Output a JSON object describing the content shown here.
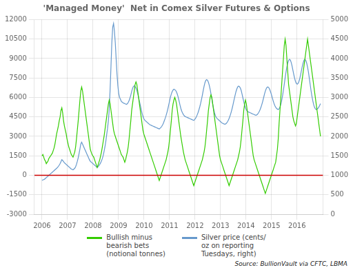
{
  "chart_data": {
    "type": "line",
    "title": "'Managed Money'  Net in Comex Silver Futures & Options",
    "source": "Source: BullionVault via CFTC, LBMA",
    "legend": "bottom",
    "grid": true,
    "xlim": [
      2005.7,
      2017.02
    ],
    "xticks": [
      2006,
      2007,
      2008,
      2009,
      2010,
      2011,
      2012,
      2013,
      2014,
      2015,
      2016
    ],
    "ylim": [
      -3000,
      12000
    ],
    "yticks": [
      -3000,
      -1500,
      0,
      1500,
      3000,
      4500,
      6000,
      7500,
      9000,
      10500,
      12000
    ],
    "y2lim": [
      0,
      5000
    ],
    "y2ticks": [
      0,
      500,
      1000,
      1500,
      2000,
      2500,
      3000,
      3500,
      4000,
      4500,
      5000
    ],
    "zero_line": {
      "value": 0,
      "color": "#CC0000"
    },
    "x": [
      2006,
      2006.034,
      2006.068,
      2006.101,
      2006.135,
      2006.169,
      2006.203,
      2006.237,
      2006.27,
      2006.304,
      2006.338,
      2006.372,
      2006.406,
      2006.44,
      2006.473,
      2006.507,
      2006.541,
      2006.575,
      2006.609,
      2006.642,
      2006.676,
      2006.71,
      2006.744,
      2006.778,
      2006.811,
      2006.845,
      2006.879,
      2006.913,
      2006.947,
      2006.98,
      2007.014,
      2007.048,
      2007.082,
      2007.116,
      2007.149,
      2007.183,
      2007.217,
      2007.251,
      2007.285,
      2007.319,
      2007.352,
      2007.386,
      2007.42,
      2007.454,
      2007.488,
      2007.521,
      2007.555,
      2007.589,
      2007.623,
      2007.657,
      2007.69,
      2007.724,
      2007.758,
      2007.792,
      2007.826,
      2007.859,
      2007.893,
      2007.927,
      2007.961,
      2007.995,
      2008.028,
      2008.062,
      2008.096,
      2008.13,
      2008.164,
      2008.198,
      2008.231,
      2008.265,
      2008.299,
      2008.333,
      2008.367,
      2008.4,
      2008.434,
      2008.468,
      2008.502,
      2008.536,
      2008.569,
      2008.603,
      2008.637,
      2008.671,
      2008.705,
      2008.738,
      2008.772,
      2008.806,
      2008.84,
      2008.874,
      2008.907,
      2008.941,
      2008.975,
      2009.009,
      2009.043,
      2009.077,
      2009.11,
      2009.144,
      2009.178,
      2009.212,
      2009.246,
      2009.279,
      2009.313,
      2009.347,
      2009.381,
      2009.415,
      2009.448,
      2009.482,
      2009.516,
      2009.55,
      2009.584,
      2009.617,
      2009.651,
      2009.685,
      2009.719,
      2009.753,
      2009.787,
      2009.82,
      2009.854,
      2009.888,
      2009.922,
      2009.956,
      2009.989,
      2010.023,
      2010.057,
      2010.091,
      2010.125,
      2010.158,
      2010.192,
      2010.226,
      2010.26,
      2010.294,
      2010.327,
      2010.361,
      2010.395,
      2010.429,
      2010.463,
      2010.496,
      2010.53,
      2010.564,
      2010.598,
      2010.632,
      2010.666,
      2010.699,
      2010.733,
      2010.767,
      2010.801,
      2010.835,
      2010.868,
      2010.902,
      2010.936,
      2010.97,
      2011.004,
      2011.037,
      2011.071,
      2011.105,
      2011.139,
      2011.173,
      2011.206,
      2011.24,
      2011.274,
      2011.308,
      2011.342,
      2011.375,
      2011.409,
      2011.443,
      2011.477,
      2011.511,
      2011.545,
      2011.578,
      2011.612,
      2011.646,
      2011.68,
      2011.714,
      2011.747,
      2011.781,
      2011.815,
      2011.849,
      2011.883,
      2011.916,
      2011.95,
      2011.984,
      2012.018,
      2012.052,
      2012.085,
      2012.119,
      2012.153,
      2012.187,
      2012.221,
      2012.254,
      2012.288,
      2012.322,
      2012.356,
      2012.39,
      2012.424,
      2012.457,
      2012.491,
      2012.525,
      2012.559,
      2012.593,
      2012.626,
      2012.66,
      2012.694,
      2012.728,
      2012.762,
      2012.795,
      2012.829,
      2012.863,
      2012.897,
      2012.931,
      2012.964,
      2012.998,
      2013.032,
      2013.066,
      2013.1,
      2013.133,
      2013.167,
      2013.201,
      2013.235,
      2013.269,
      2013.303,
      2013.336,
      2013.37,
      2013.404,
      2013.438,
      2013.472,
      2013.505,
      2013.539,
      2013.573,
      2013.607,
      2013.641,
      2013.674,
      2013.708,
      2013.742,
      2013.776,
      2013.81,
      2013.843,
      2013.877,
      2013.911,
      2013.945,
      2013.979,
      2014.013,
      2014.046,
      2014.08,
      2014.114,
      2014.148,
      2014.182,
      2014.215,
      2014.249,
      2014.283,
      2014.317,
      2014.351,
      2014.384,
      2014.418,
      2014.452,
      2014.486,
      2014.52,
      2014.553,
      2014.587,
      2014.621,
      2014.655,
      2014.689,
      2014.722,
      2014.756,
      2014.79,
      2014.824,
      2014.858,
      2014.892,
      2014.925,
      2014.959,
      2014.993,
      2015.027,
      2015.061,
      2015.094,
      2015.128,
      2015.162,
      2015.196,
      2015.23,
      2015.263,
      2015.297,
      2015.331,
      2015.365,
      2015.399,
      2015.432,
      2015.466,
      2015.5,
      2015.534,
      2015.568,
      2015.601,
      2015.635,
      2015.669,
      2015.703,
      2015.737,
      2015.771,
      2015.804,
      2015.838,
      2015.872,
      2015.906,
      2015.94,
      2015.973,
      2016.007,
      2016.041,
      2016.075,
      2016.109,
      2016.142,
      2016.176,
      2016.21,
      2016.244,
      2016.278,
      2016.311,
      2016.345,
      2016.379,
      2016.413,
      2016.447,
      2016.48,
      2016.514,
      2016.548,
      2016.582,
      2016.616,
      2016.65,
      2016.683,
      2016.717,
      2016.751,
      2016.785,
      2016.819,
      2016.852,
      2016.886,
      2016.92
    ],
    "series": [
      {
        "name": "Bullish minus\nbearish bets\n(notional tonnes)",
        "color": "#33CC00",
        "values": [
          1500,
          1600,
          1400,
          1200,
          1100,
          900,
          1000,
          1100,
          1300,
          1400,
          1500,
          1600,
          1700,
          1900,
          2100,
          2400,
          2800,
          3200,
          3500,
          3800,
          4200,
          4500,
          5000,
          5200,
          4800,
          4200,
          3800,
          3500,
          3200,
          2800,
          2500,
          2200,
          2000,
          1800,
          1600,
          1500,
          1400,
          1600,
          1800,
          2200,
          2800,
          3500,
          4200,
          5000,
          5800,
          6500,
          6800,
          6500,
          6000,
          5500,
          5000,
          4500,
          4000,
          3500,
          3000,
          2500,
          2000,
          1800,
          1600,
          1500,
          1400,
          1200,
          1000,
          800,
          600,
          800,
          1000,
          1200,
          1500,
          1800,
          2200,
          2600,
          3000,
          3500,
          4000,
          4500,
          5000,
          5500,
          5800,
          5500,
          5000,
          4500,
          4000,
          3500,
          3200,
          3000,
          2800,
          2600,
          2400,
          2200,
          2000,
          1800,
          1600,
          1500,
          1400,
          1200,
          1000,
          1200,
          1500,
          1800,
          2200,
          2800,
          3500,
          4200,
          5000,
          5500,
          6000,
          6500,
          7000,
          7200,
          7000,
          6500,
          6000,
          5500,
          5000,
          4500,
          4000,
          3500,
          3200,
          3000,
          2800,
          2600,
          2400,
          2200,
          2000,
          1800,
          1600,
          1400,
          1200,
          1000,
          800,
          600,
          400,
          200,
          0,
          -200,
          -400,
          -200,
          0,
          200,
          400,
          600,
          800,
          1000,
          1200,
          1500,
          1800,
          2200,
          2800,
          3500,
          4200,
          5000,
          5500,
          5800,
          6000,
          5800,
          5500,
          5000,
          4500,
          4000,
          3500,
          3000,
          2600,
          2200,
          1800,
          1500,
          1200,
          1000,
          800,
          600,
          400,
          200,
          0,
          -200,
          -400,
          -600,
          -800,
          -600,
          -400,
          -200,
          0,
          200,
          400,
          600,
          800,
          1000,
          1200,
          1500,
          1800,
          2200,
          2800,
          3500,
          4200,
          5000,
          5500,
          6000,
          6200,
          6000,
          5500,
          5000,
          4500,
          4000,
          3500,
          3000,
          2500,
          2000,
          1500,
          1200,
          1000,
          800,
          600,
          400,
          200,
          0,
          -200,
          -400,
          -600,
          -800,
          -600,
          -400,
          -200,
          0,
          200,
          400,
          600,
          800,
          1000,
          1200,
          1500,
          1800,
          2200,
          2800,
          3500,
          4200,
          5000,
          5500,
          5800,
          5500,
          5000,
          4500,
          4000,
          3500,
          3000,
          2500,
          2000,
          1500,
          1200,
          1000,
          800,
          600,
          400,
          200,
          0,
          -200,
          -400,
          -600,
          -800,
          -1000,
          -1200,
          -1400,
          -1200,
          -1000,
          -800,
          -600,
          -400,
          -200,
          0,
          200,
          400,
          600,
          800,
          1000,
          1500,
          2000,
          2800,
          4000,
          5000,
          6000,
          7000,
          8000,
          9000,
          10000,
          10500,
          10000,
          9000,
          8000,
          7000,
          6500,
          6000,
          5500,
          5000,
          4500,
          4200,
          4000,
          3800,
          4000,
          4500,
          5000,
          5500,
          6000,
          6500,
          7000,
          7500,
          8000,
          8500,
          9000,
          9500,
          10000,
          10500,
          10000,
          9500,
          9000,
          8500,
          8000,
          7500,
          7000,
          6500,
          6000,
          5500,
          5000,
          4500,
          4000,
          3500,
          3000
        ]
      },
      {
        "name": "Silver price (cents/\noz on reporting\nTuesdays, right)",
        "color": "#6699CC",
        "axis": "y2",
        "values": [
          870,
          880,
          890,
          900,
          920,
          940,
          960,
          980,
          1000,
          1020,
          1040,
          1060,
          1080,
          1100,
          1120,
          1140,
          1160,
          1180,
          1200,
          1230,
          1260,
          1300,
          1350,
          1400,
          1380,
          1350,
          1320,
          1300,
          1280,
          1260,
          1240,
          1220,
          1200,
          1180,
          1160,
          1150,
          1140,
          1160,
          1180,
          1220,
          1280,
          1360,
          1450,
          1560,
          1680,
          1800,
          1850,
          1800,
          1750,
          1700,
          1650,
          1600,
          1550,
          1500,
          1450,
          1400,
          1360,
          1340,
          1320,
          1300,
          1280,
          1260,
          1240,
          1220,
          1200,
          1220,
          1250,
          1280,
          1320,
          1370,
          1430,
          1510,
          1610,
          1730,
          1870,
          2040,
          2200,
          2400,
          2700,
          3200,
          3800,
          4400,
          4800,
          4900,
          4700,
          4400,
          4000,
          3600,
          3300,
          3100,
          3000,
          2950,
          2900,
          2880,
          2860,
          2850,
          2840,
          2830,
          2820,
          2840,
          2870,
          2920,
          2980,
          3060,
          3150,
          3230,
          3280,
          3300,
          3280,
          3240,
          3180,
          3100,
          3000,
          2900,
          2800,
          2700,
          2600,
          2520,
          2460,
          2420,
          2400,
          2380,
          2360,
          2340,
          2320,
          2300,
          2290,
          2280,
          2270,
          2260,
          2250,
          2240,
          2230,
          2220,
          2210,
          2200,
          2190,
          2210,
          2230,
          2260,
          2300,
          2350,
          2410,
          2470,
          2540,
          2620,
          2710,
          2810,
          2910,
          3010,
          3090,
          3150,
          3190,
          3210,
          3200,
          3180,
          3140,
          3080,
          3000,
          2910,
          2810,
          2720,
          2650,
          2600,
          2560,
          2530,
          2510,
          2500,
          2490,
          2480,
          2470,
          2460,
          2450,
          2440,
          2430,
          2420,
          2410,
          2430,
          2460,
          2500,
          2550,
          2610,
          2680,
          2760,
          2850,
          2950,
          3060,
          3180,
          3290,
          3380,
          3440,
          3460,
          3440,
          3390,
          3310,
          3210,
          3090,
          2960,
          2830,
          2710,
          2610,
          2540,
          2490,
          2460,
          2440,
          2420,
          2400,
          2380,
          2360,
          2340,
          2330,
          2320,
          2310,
          2320,
          2340,
          2370,
          2410,
          2460,
          2520,
          2590,
          2670,
          2760,
          2860,
          2960,
          3060,
          3150,
          3220,
          3270,
          3290,
          3280,
          3240,
          3180,
          3090,
          2990,
          2890,
          2800,
          2730,
          2680,
          2650,
          2630,
          2620,
          2610,
          2600,
          2590,
          2580,
          2570,
          2560,
          2550,
          2540,
          2550,
          2570,
          2600,
          2640,
          2690,
          2750,
          2820,
          2900,
          2990,
          3080,
          3160,
          3220,
          3260,
          3270,
          3250,
          3210,
          3150,
          3080,
          3000,
          2920,
          2850,
          2790,
          2750,
          2720,
          2700,
          2690,
          2710,
          2750,
          2820,
          2920,
          3040,
          3180,
          3340,
          3500,
          3650,
          3780,
          3880,
          3950,
          3980,
          3960,
          3900,
          3810,
          3700,
          3590,
          3490,
          3410,
          3360,
          3340,
          3360,
          3410,
          3490,
          3590,
          3700,
          3810,
          3900,
          3960,
          3980,
          3950,
          3880,
          3780,
          3650,
          3500,
          3340,
          3180,
          3040,
          2920,
          2820,
          2750,
          2710,
          2690,
          2700,
          2720,
          2750,
          2790,
          2840
        ]
      }
    ]
  }
}
